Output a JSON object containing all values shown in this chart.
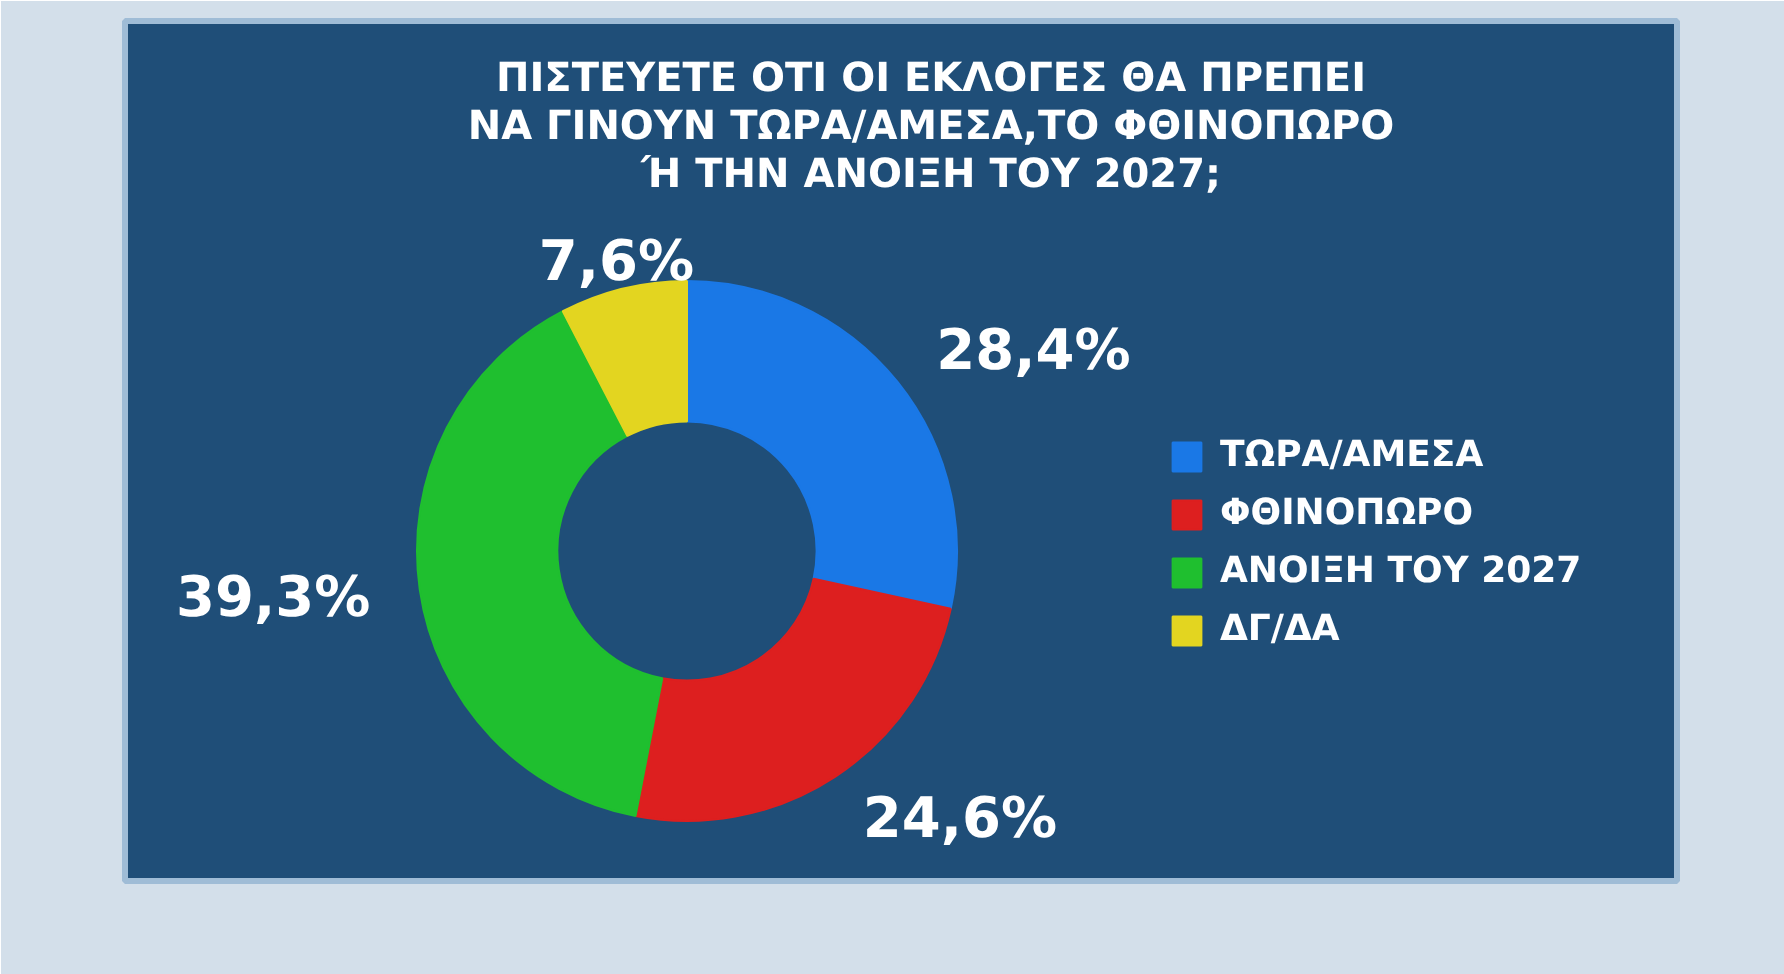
{
  "chart_data": {
    "type": "donut",
    "title": "ΠΙΣΤΕΥΕΤΕ ΟΤΙ ΟΙ ΕΚΛΟΓΕΣ ΘΑ ΠΡΕΠΕΙ\nΝΑ ΓΙΝΟΥΝ ΤΩΡΑ/ΑΜΕΣΑ,ΤΟ ΦΘΙΝΟΠΩΡΟ\nΉ ΤΗΝ ΑΝΟΙΞΗ ΤΟΥ 2027;",
    "categories": [
      "ΤΩΡΑ/ΑΜΕΣΑ",
      "ΦΘΙΝΟΠΩΡΟ",
      "ΑΝΟΙΞΗ ΤΟΥ 2027",
      "ΔΓ/ΔΑ"
    ],
    "values": [
      28.4,
      24.6,
      39.3,
      7.6
    ],
    "colors": [
      "#1a78e6",
      "#dd1f1f",
      "#1fbf2f",
      "#e3d520"
    ],
    "value_labels": [
      "28,4%",
      "24,6%",
      "39,3%",
      "7,6%"
    ],
    "legend": "right"
  }
}
